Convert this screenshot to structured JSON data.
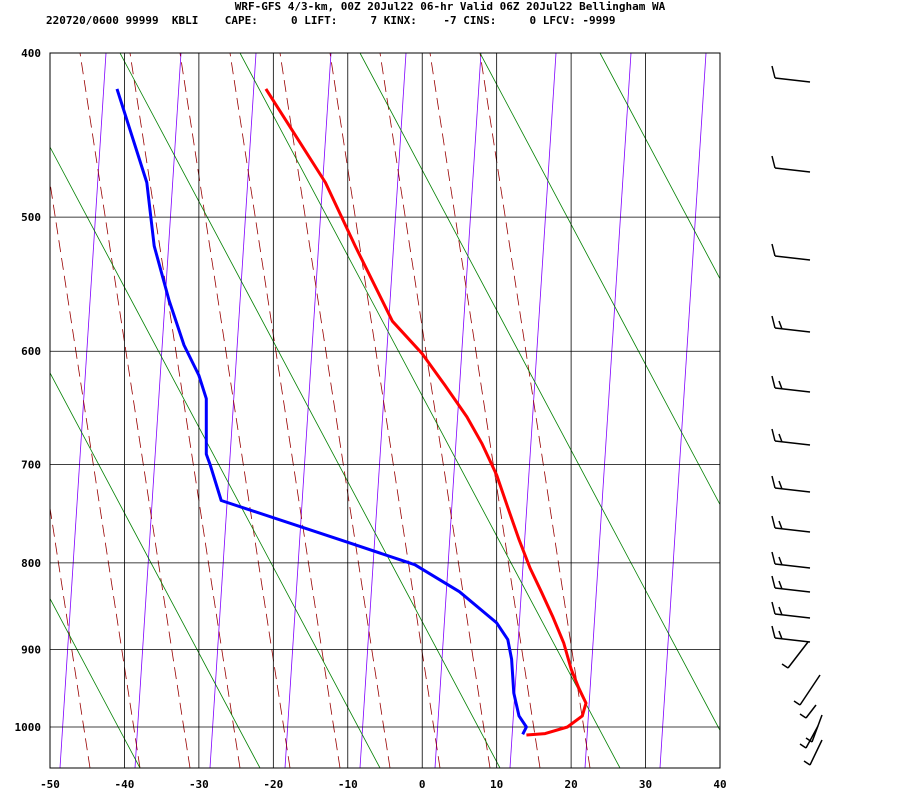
{
  "header": {
    "line1": "WRF-GFS 4/3-km, 00Z 20Jul22 06-hr Valid 06Z 20Jul22 Bellingham WA",
    "line2": "220720/0600 99999  KBLI    CAPE:     0 LIFT:     7 KINX:    -7 CINS:     0 LFCV: -9999"
  },
  "chart_data": {
    "type": "line",
    "title": "",
    "xlabel": "",
    "ylabel": "",
    "x_ticks": [
      -50,
      -40,
      -30,
      -20,
      -10,
      0,
      10,
      20,
      30,
      40
    ],
    "y_ticks": [
      400,
      500,
      600,
      700,
      800,
      900,
      1000
    ],
    "xlim": [
      -50,
      40
    ],
    "ylim": [
      1040,
      400
    ],
    "y_scale": "log (skew-T log-p)",
    "grid": true,
    "colors": {
      "temperature": "#ff0000",
      "dewpoint": "#0000ff",
      "dry_adiabats": "#008000",
      "moist_adiabats": "#990000",
      "mixing_ratio": "#8000ff"
    },
    "series": [
      {
        "key": "temperature",
        "points": [
          [
            -21,
            420
          ],
          [
            -13,
            477
          ],
          [
            -9,
            520
          ],
          [
            -4,
            576
          ],
          [
            0,
            602
          ],
          [
            3,
            628
          ],
          [
            6,
            656
          ],
          [
            8,
            680
          ],
          [
            10,
            710
          ],
          [
            11.5,
            742
          ],
          [
            13,
            775
          ],
          [
            14.5,
            806
          ],
          [
            16,
            832
          ],
          [
            17.5,
            860
          ],
          [
            19,
            892
          ],
          [
            20,
            924
          ],
          [
            21,
            948
          ],
          [
            22,
            968
          ],
          [
            21.5,
            985
          ],
          [
            19.5,
            1000
          ],
          [
            16.5,
            1009
          ],
          [
            14,
            1011
          ]
        ]
      },
      {
        "key": "dewpoint",
        "points": [
          [
            -41,
            420
          ],
          [
            -37,
            477
          ],
          [
            -36,
            520
          ],
          [
            -34,
            560
          ],
          [
            -32,
            595
          ],
          [
            -30,
            620
          ],
          [
            -29,
            640
          ],
          [
            -29,
            668
          ],
          [
            -29,
            690
          ],
          [
            -28.5,
            700
          ],
          [
            -27,
            735
          ],
          [
            -10,
            778
          ],
          [
            -1,
            802
          ],
          [
            5,
            832
          ],
          [
            10,
            868
          ],
          [
            11.5,
            888
          ],
          [
            12,
            912
          ],
          [
            12.3,
            955
          ],
          [
            13,
            985
          ],
          [
            14,
            1000
          ],
          [
            13.5,
            1010
          ]
        ]
      }
    ],
    "wind_barbs": [
      "",
      "",
      "",
      "",
      "",
      "",
      "",
      "",
      "",
      "",
      "",
      "",
      "",
      "",
      "",
      "",
      "",
      "",
      "",
      ""
    ]
  }
}
